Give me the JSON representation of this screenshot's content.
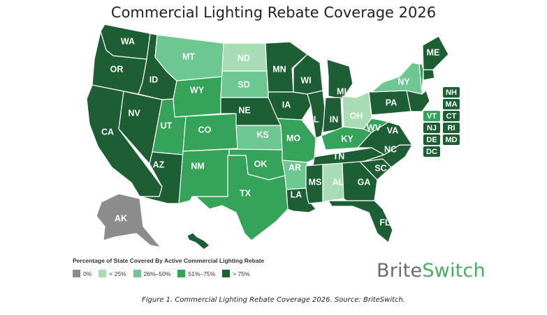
{
  "title": "Commercial Lighting Rebate Coverage 2026",
  "colors": {
    "zero": "#8c8c8c",
    "lt25": "#a8dcb4",
    "p26_50": "#6cc790",
    "p51_75": "#35a35a",
    "gt75": "#1d5e35",
    "alaska": "#8c8c8c"
  },
  "states": [
    {
      "code": "WA",
      "cat": "gt75"
    },
    {
      "code": "OR",
      "cat": "gt75"
    },
    {
      "code": "CA",
      "cat": "gt75"
    },
    {
      "code": "NV",
      "cat": "gt75"
    },
    {
      "code": "ID",
      "cat": "gt75"
    },
    {
      "code": "MT",
      "cat": "p26_50"
    },
    {
      "code": "WY",
      "cat": "p51_75"
    },
    {
      "code": "UT",
      "cat": "p51_75"
    },
    {
      "code": "AZ",
      "cat": "gt75"
    },
    {
      "code": "CO",
      "cat": "p51_75"
    },
    {
      "code": "NM",
      "cat": "p51_75"
    },
    {
      "code": "ND",
      "cat": "lt25"
    },
    {
      "code": "SD",
      "cat": "p26_50"
    },
    {
      "code": "NE",
      "cat": "gt75"
    },
    {
      "code": "KS",
      "cat": "p26_50"
    },
    {
      "code": "OK",
      "cat": "p51_75"
    },
    {
      "code": "TX",
      "cat": "p51_75"
    },
    {
      "code": "MN",
      "cat": "gt75"
    },
    {
      "code": "IA",
      "cat": "gt75"
    },
    {
      "code": "MO",
      "cat": "p51_75"
    },
    {
      "code": "AR",
      "cat": "p26_50"
    },
    {
      "code": "LA",
      "cat": "gt75"
    },
    {
      "code": "WI",
      "cat": "gt75"
    },
    {
      "code": "IL",
      "cat": "gt75"
    },
    {
      "code": "MI",
      "cat": "gt75"
    },
    {
      "code": "IN",
      "cat": "gt75"
    },
    {
      "code": "OH",
      "cat": "lt25"
    },
    {
      "code": "KY",
      "cat": "p51_75"
    },
    {
      "code": "TN",
      "cat": "gt75"
    },
    {
      "code": "MS",
      "cat": "gt75"
    },
    {
      "code": "AL",
      "cat": "lt25"
    },
    {
      "code": "GA",
      "cat": "gt75"
    },
    {
      "code": "FL",
      "cat": "gt75"
    },
    {
      "code": "SC",
      "cat": "gt75"
    },
    {
      "code": "NC",
      "cat": "gt75"
    },
    {
      "code": "VA",
      "cat": "gt75"
    },
    {
      "code": "WV",
      "cat": "p51_75"
    },
    {
      "code": "PA",
      "cat": "gt75"
    },
    {
      "code": "NY",
      "cat": "p26_50"
    },
    {
      "code": "ME",
      "cat": "gt75"
    },
    {
      "code": "AK",
      "cat": "zero"
    },
    {
      "code": "HI",
      "cat": "gt75"
    }
  ],
  "small_states": [
    {
      "code": "NH",
      "cat": "gt75"
    },
    {
      "code": "MA",
      "cat": "gt75"
    },
    {
      "code": "VT",
      "cat": "p51_75"
    },
    {
      "code": "CT",
      "cat": "gt75"
    },
    {
      "code": "NJ",
      "cat": "gt75"
    },
    {
      "code": "RI",
      "cat": "gt75"
    },
    {
      "code": "DE",
      "cat": "gt75"
    },
    {
      "code": "MD",
      "cat": "gt75"
    },
    {
      "code": "DC",
      "cat": "gt75"
    }
  ],
  "legend": {
    "title": "Percentage of State Covered By Active Commercial Lighting Rebate",
    "items": [
      {
        "label": "0%",
        "cat": "zero"
      },
      {
        "label": "< 25%",
        "cat": "lt25"
      },
      {
        "label": "26%–50%",
        "cat": "p26_50"
      },
      {
        "label": "51%–75%",
        "cat": "p51_75"
      },
      {
        "label": "> 75%",
        "cat": "gt75"
      }
    ]
  },
  "brand": {
    "part1": "Brite",
    "part2": "Switch"
  },
  "caption": "Figure 1. Commercial Lighting Rebate Coverage 2026. Source: BriteSwitch."
}
